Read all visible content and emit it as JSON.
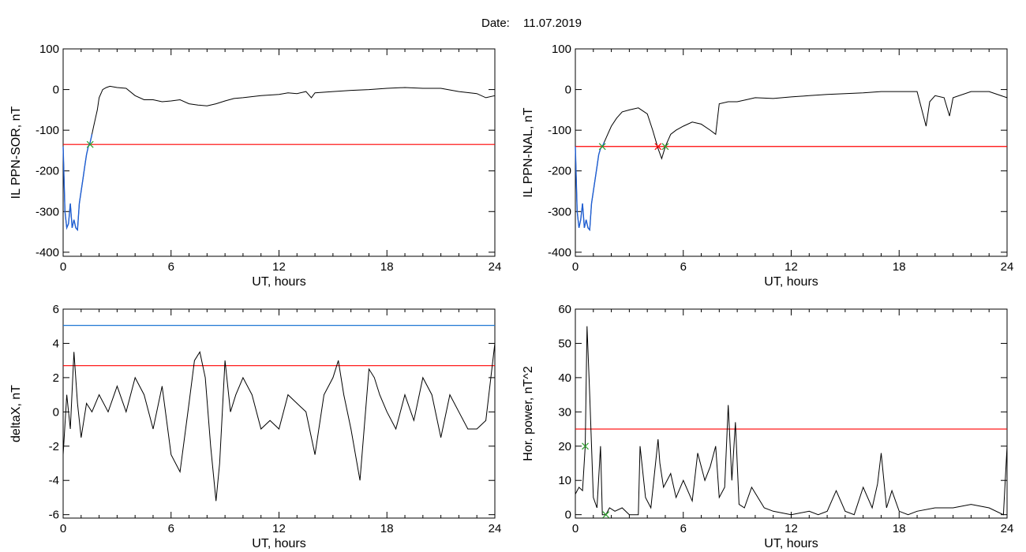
{
  "header": {
    "date_label": "Date:",
    "date_value": "11.07.2019"
  },
  "colors": {
    "line": "#000000",
    "threshold": "#ff0000",
    "upper_threshold": "#1f77d4",
    "below_segment": "#1f5fd4",
    "marker_green": "#2ca02c",
    "marker_red": "#ff0000"
  },
  "chart_data": [
    {
      "type": "line",
      "panel": "top-left",
      "xlabel": "UT, hours",
      "ylabel": "IL PPN-SOR, nT",
      "xlim": [
        0,
        24
      ],
      "ylim": [
        -410,
        100
      ],
      "xticks": [
        0,
        6,
        12,
        18,
        24
      ],
      "yticks": [
        -400,
        -300,
        -200,
        -100,
        0,
        100
      ],
      "threshold": -135,
      "series": [
        {
          "x": [
            0,
            0.1,
            0.2,
            0.3,
            0.4,
            0.5,
            0.6,
            0.7,
            0.8,
            0.9,
            1.0,
            1.1,
            1.2,
            1.3,
            1.4,
            1.5,
            1.6,
            1.7,
            1.8,
            1.9,
            2.0,
            2.2,
            2.4,
            2.6,
            3,
            3.5,
            4,
            4.5,
            5,
            5.5,
            6,
            6.5,
            7,
            7.5,
            8,
            8.5,
            9,
            9.5,
            10,
            11,
            12,
            12.5,
            13,
            13.5,
            13.8,
            14,
            15,
            16,
            17,
            18,
            19,
            20,
            21,
            22,
            23,
            23.5,
            24
          ],
          "y": [
            -140,
            -300,
            -340,
            -330,
            -280,
            -340,
            -320,
            -340,
            -345,
            -280,
            -250,
            -220,
            -190,
            -160,
            -140,
            -130,
            -110,
            -90,
            -70,
            -50,
            -20,
            0,
            5,
            8,
            5,
            3,
            -15,
            -25,
            -25,
            -30,
            -28,
            -25,
            -35,
            -38,
            -40,
            -35,
            -28,
            -22,
            -20,
            -15,
            -12,
            -8,
            -10,
            -5,
            -20,
            -8,
            -5,
            -2,
            0,
            3,
            5,
            3,
            3,
            -5,
            -10,
            -20,
            -15
          ]
        }
      ],
      "below_segment_x": [
        0,
        1.6
      ],
      "markers": [
        {
          "x": 1.5,
          "y": -135,
          "color": "green"
        }
      ]
    },
    {
      "type": "line",
      "panel": "top-right",
      "xlabel": "UT, hours",
      "ylabel": "IL PPN-NAL, nT",
      "xlim": [
        0,
        24
      ],
      "ylim": [
        -410,
        100
      ],
      "xticks": [
        0,
        6,
        12,
        18,
        24
      ],
      "yticks": [
        -400,
        -300,
        -200,
        -100,
        0,
        100
      ],
      "threshold": -140,
      "series": [
        {
          "x": [
            0,
            0.1,
            0.2,
            0.3,
            0.4,
            0.5,
            0.6,
            0.7,
            0.8,
            0.9,
            1.0,
            1.1,
            1.2,
            1.3,
            1.4,
            1.5,
            1.6,
            1.8,
            2.0,
            2.3,
            2.6,
            3,
            3.5,
            4,
            4.3,
            4.6,
            4.8,
            5.0,
            5.3,
            5.6,
            6,
            6.5,
            7,
            7.5,
            7.8,
            8,
            8.5,
            9,
            9.5,
            10,
            11,
            12,
            13,
            14,
            15,
            16,
            17,
            18,
            19,
            19.5,
            19.7,
            20,
            20.5,
            20.8,
            21,
            22,
            23,
            24
          ],
          "y": [
            -140,
            -300,
            -340,
            -320,
            -280,
            -340,
            -320,
            -340,
            -345,
            -280,
            -250,
            -220,
            -190,
            -160,
            -145,
            -140,
            -130,
            -110,
            -90,
            -70,
            -55,
            -50,
            -45,
            -60,
            -100,
            -145,
            -170,
            -140,
            -110,
            -100,
            -90,
            -80,
            -85,
            -100,
            -110,
            -35,
            -30,
            -30,
            -25,
            -20,
            -22,
            -18,
            -15,
            -12,
            -10,
            -8,
            -5,
            -5,
            -5,
            -90,
            -30,
            -15,
            -20,
            -65,
            -20,
            -5,
            -5,
            -20
          ]
        }
      ],
      "below_segment_x": [
        0,
        1.6
      ],
      "markers": [
        {
          "x": 1.5,
          "y": -140,
          "color": "green"
        },
        {
          "x": 4.6,
          "y": -140,
          "color": "red"
        },
        {
          "x": 5.0,
          "y": -140,
          "color": "green"
        }
      ]
    },
    {
      "type": "line",
      "panel": "bottom-left",
      "xlabel": "UT, hours",
      "ylabel": "deltaX, nT",
      "xlim": [
        0,
        24
      ],
      "ylim": [
        -6.2,
        6
      ],
      "xticks": [
        0,
        6,
        12,
        18,
        24
      ],
      "yticks": [
        -6,
        -4,
        -2,
        0,
        2,
        4,
        6
      ],
      "threshold": 2.7,
      "upper_threshold": 5.05,
      "series": [
        {
          "x": [
            0,
            0.2,
            0.4,
            0.6,
            0.8,
            1.0,
            1.3,
            1.6,
            2,
            2.5,
            3,
            3.5,
            4,
            4.5,
            5,
            5.5,
            6,
            6.5,
            7,
            7.3,
            7.6,
            7.9,
            8.2,
            8.5,
            8.7,
            9,
            9.3,
            9.6,
            10,
            10.5,
            11,
            11.5,
            12,
            12.5,
            13,
            13.5,
            14,
            14.5,
            15,
            15.3,
            15.6,
            16,
            16.5,
            17,
            17.3,
            17.6,
            18,
            18.5,
            19,
            19.5,
            20,
            20.5,
            21,
            21.5,
            22,
            22.5,
            23,
            23.5,
            24
          ],
          "y": [
            -2.5,
            1,
            -1,
            3.5,
            0.5,
            -1.5,
            0.5,
            0,
            1,
            0,
            1.5,
            0,
            2,
            1,
            -1,
            1.5,
            -2.5,
            -3.5,
            0.5,
            3,
            3.5,
            2,
            -2,
            -5.2,
            -3,
            3,
            0,
            1,
            2,
            1,
            -1,
            -0.5,
            -1,
            1,
            0.5,
            0,
            -2.5,
            1,
            2,
            3,
            1,
            -1,
            -4,
            2.5,
            2,
            1,
            0,
            -1,
            1,
            -0.5,
            2,
            1,
            -1.5,
            1,
            0,
            -1,
            -1,
            -0.5,
            4
          ]
        }
      ]
    },
    {
      "type": "line",
      "panel": "bottom-right",
      "xlabel": "UT, hours",
      "ylabel": "Hor. power, nT^2",
      "xlim": [
        0,
        24
      ],
      "ylim": [
        -1,
        60
      ],
      "xticks": [
        0,
        6,
        12,
        18,
        24
      ],
      "yticks": [
        0,
        10,
        20,
        30,
        40,
        50,
        60
      ],
      "threshold": 25,
      "series": [
        {
          "x": [
            0,
            0.2,
            0.4,
            0.55,
            0.65,
            0.8,
            1.0,
            1.2,
            1.4,
            1.5,
            1.7,
            1.9,
            2.2,
            2.6,
            3,
            3.5,
            3.6,
            3.9,
            4.2,
            4.6,
            4.7,
            4.9,
            5.3,
            5.6,
            6,
            6.5,
            6.8,
            7.2,
            7.5,
            7.8,
            8,
            8.3,
            8.5,
            8.7,
            8.9,
            9.1,
            9.4,
            9.8,
            10.5,
            11,
            12,
            13,
            13.5,
            14,
            14.5,
            15,
            15.5,
            16,
            16.5,
            16.8,
            17,
            17.3,
            17.6,
            18,
            18.5,
            19,
            20,
            21,
            22,
            23,
            23.8,
            24
          ],
          "y": [
            6,
            8,
            7,
            20,
            55,
            35,
            5,
            2,
            20,
            0,
            0,
            2,
            1,
            2,
            0,
            0,
            20,
            5,
            2,
            22,
            15,
            8,
            12,
            5,
            10,
            4,
            18,
            10,
            14,
            20,
            5,
            8,
            32,
            10,
            27,
            3,
            2,
            8,
            2,
            1,
            0,
            1,
            0,
            1,
            7,
            1,
            0,
            8,
            2,
            9,
            18,
            2,
            7,
            1,
            0,
            1,
            2,
            2,
            3,
            2,
            0,
            20
          ]
        }
      ],
      "markers": [
        {
          "x": 0.55,
          "y": 20,
          "color": "green"
        },
        {
          "x": 1.7,
          "y": 0,
          "color": "green"
        }
      ]
    }
  ]
}
